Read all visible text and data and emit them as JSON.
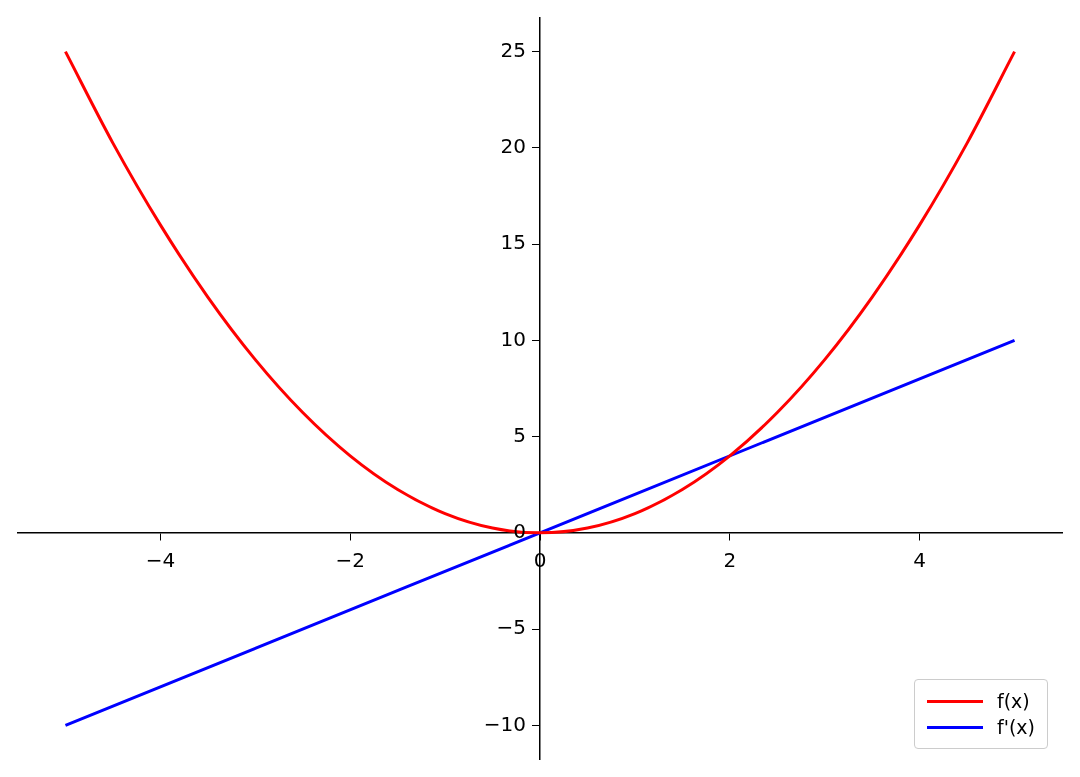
{
  "chart_data": {
    "type": "line",
    "x": [
      -5,
      -4.5,
      -4,
      -3.5,
      -3,
      -2.5,
      -2,
      -1.5,
      -1,
      -0.5,
      0,
      0.5,
      1,
      1.5,
      2,
      2.5,
      3,
      3.5,
      4,
      4.5,
      5
    ],
    "series": [
      {
        "name": "f(x)",
        "color": "#ff0000",
        "values": [
          25,
          20.25,
          16,
          12.25,
          9,
          6.25,
          4,
          2.25,
          1,
          0.25,
          0,
          0.25,
          1,
          2.25,
          4,
          6.25,
          9,
          12.25,
          16,
          20.25,
          25
        ]
      },
      {
        "name": "f'(x)",
        "color": "#0000ff",
        "x": [
          -5,
          0,
          5
        ],
        "values": [
          -10,
          0,
          10
        ]
      }
    ],
    "xlim": [
      -5.5,
      5.5
    ],
    "xticks": [
      -4,
      -2,
      0,
      2,
      4
    ],
    "ylim": [
      -11.75,
      26.75
    ],
    "yticks": [
      -10,
      -5,
      0,
      5,
      10,
      15,
      20,
      25
    ],
    "legend": "bottom right",
    "marker": "none",
    "line_style": "solid",
    "grid": false
  }
}
